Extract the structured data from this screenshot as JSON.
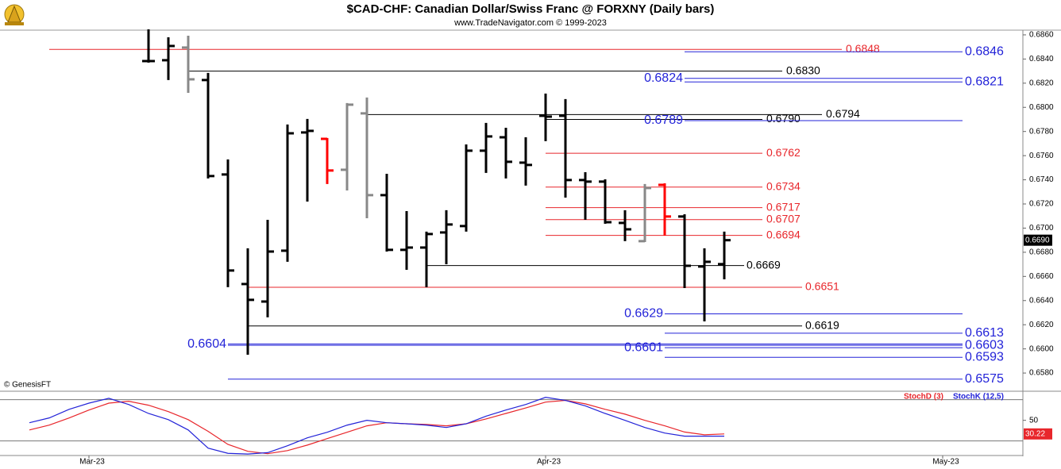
{
  "chart_data": {
    "type": "ohlc",
    "title": "$CAD-CHF:  Canadian Dollar/Swiss Franc @ FORXNY  (Daily bars)",
    "subtitle": "www.TradeNavigator.com © 1999-2023",
    "annotation": "© GenesisFT",
    "categories": [
      null,
      null,
      null,
      "Mar-23",
      null,
      null,
      null,
      null,
      null,
      null,
      null,
      null,
      null,
      null,
      null,
      null,
      null,
      null,
      null,
      null,
      null,
      null,
      null,
      null,
      null,
      null,
      "Apr-23",
      null,
      null,
      null,
      null,
      null,
      null,
      null,
      null,
      null,
      null,
      null,
      null,
      null,
      null,
      null,
      null,
      null,
      null,
      null,
      "May-23"
    ],
    "open": [
      null,
      null,
      null,
      null,
      null,
      null,
      0.68383,
      0.6839,
      0.68495,
      0.68226,
      0.67444,
      0.66537,
      0.66392,
      0.66813,
      0.67792,
      0.67739,
      0.67483,
      0.6795,
      0.67273,
      0.6682,
      0.66839,
      0.66964,
      0.67017,
      0.67641,
      0.67752,
      0.67542,
      0.6793,
      0.6793,
      0.67398,
      0.67385,
      0.67043,
      0.66892,
      0.67358,
      0.67096,
      0.66682,
      0.66702,
      null,
      null,
      null,
      null,
      null,
      null,
      null,
      null,
      null,
      null,
      null
    ],
    "high": [
      null,
      null,
      null,
      null,
      null,
      null,
      0.68646,
      0.6858,
      0.68593,
      0.68285,
      0.67569,
      0.66833,
      0.67069,
      0.67858,
      0.67904,
      0.67746,
      0.68035,
      0.68081,
      0.6745,
      0.67141,
      0.66971,
      0.67148,
      0.67693,
      0.67871,
      0.67831,
      0.67752,
      0.68114,
      0.68068,
      0.67463,
      0.67404,
      0.67148,
      0.67365,
      0.67371,
      0.67115,
      0.66833,
      0.66971,
      null,
      null,
      null,
      null,
      null,
      null,
      null,
      null,
      null,
      null,
      null
    ],
    "low": [
      null,
      null,
      null,
      null,
      null,
      null,
      0.6837,
      0.68226,
      0.6812,
      0.67411,
      0.66511,
      0.65952,
      0.66261,
      0.66721,
      0.6722,
      0.67365,
      0.67312,
      0.67082,
      0.66806,
      0.66655,
      0.66511,
      0.66701,
      0.66971,
      0.67457,
      0.67411,
      0.67352,
      0.6772,
      0.67253,
      0.67069,
      0.67036,
      0.66892,
      0.66885,
      0.66938,
      0.66504,
      0.66228,
      0.66576,
      null,
      null,
      null,
      null,
      null,
      null,
      null,
      null,
      null,
      null,
      null
    ],
    "close": [
      null,
      null,
      null,
      null,
      null,
      null,
      0.68383,
      0.68508,
      0.68232,
      0.67431,
      0.66649,
      0.66406,
      0.66806,
      0.67785,
      0.67805,
      0.67477,
      0.68022,
      0.67273,
      0.6682,
      0.66839,
      0.66951,
      0.6703,
      0.67641,
      0.67759,
      0.67549,
      0.67523,
      0.67923,
      0.67398,
      0.67385,
      0.67049,
      0.6699,
      0.67332,
      0.67096,
      0.66688,
      0.66721,
      0.669,
      null,
      null,
      null,
      null,
      null,
      null,
      null,
      null,
      null,
      null,
      null
    ],
    "bar_colors": [
      null,
      null,
      null,
      null,
      null,
      null,
      "#000000",
      "#000000",
      "#888888",
      "#000000",
      "#000000",
      "#000000",
      "#000000",
      "#000000",
      "#000000",
      "#ff0000",
      "#888888",
      "#888888",
      "#000000",
      "#000000",
      "#000000",
      "#000000",
      "#000000",
      "#000000",
      "#000000",
      "#000000",
      "#000000",
      "#000000",
      "#000000",
      "#000000",
      "#000000",
      "#888888",
      "#ff0000",
      "#000000",
      "#000000",
      "#000000",
      null,
      null,
      null,
      null,
      null,
      null,
      null,
      null,
      null,
      null,
      null
    ],
    "ylim": [
      0.65656,
      0.68639
    ],
    "yticks": [
      {
        "value": 0.658,
        "label": "0.6580"
      },
      {
        "value": 0.66,
        "label": "0.6600"
      },
      {
        "value": 0.662,
        "label": "0.6620"
      },
      {
        "value": 0.664,
        "label": "0.6640"
      },
      {
        "value": 0.666,
        "label": "0.6660"
      },
      {
        "value": 0.668,
        "label": "0.6680"
      },
      {
        "value": 0.67,
        "label": "0.6700"
      },
      {
        "value": 0.672,
        "label": "0.6720"
      },
      {
        "value": 0.674,
        "label": "0.6740"
      },
      {
        "value": 0.676,
        "label": "0.6760"
      },
      {
        "value": 0.678,
        "label": "0.6780"
      },
      {
        "value": 0.68,
        "label": "0.6800"
      },
      {
        "value": 0.682,
        "label": "0.6820"
      },
      {
        "value": 0.684,
        "label": "0.6840"
      },
      {
        "value": 0.686,
        "label": "0.6860"
      }
    ],
    "last_price": {
      "value": 0.669,
      "label": "0.6690"
    },
    "levels": [
      {
        "value": 0.6848,
        "label": "0.6848",
        "color": "#e8262b"
      },
      {
        "value": 0.6846,
        "label": "0.6846",
        "color": "#2323d8"
      },
      {
        "value": 0.683,
        "label": "0.6830",
        "color": "#000000"
      },
      {
        "value": 0.6824,
        "label": "0.6824",
        "color": "#2323d8"
      },
      {
        "value": 0.6821,
        "label": "0.6821",
        "color": "#2323d8"
      },
      {
        "value": 0.6794,
        "label": "0.6794",
        "color": "#000000"
      },
      {
        "value": 0.679,
        "label": "0.6790",
        "color": "#000000"
      },
      {
        "value": 0.6789,
        "label": "0.6789",
        "color": "#2323d8"
      },
      {
        "value": 0.6762,
        "label": "0.6762",
        "color": "#e8262b"
      },
      {
        "value": 0.6734,
        "label": "0.6734",
        "color": "#e8262b"
      },
      {
        "value": 0.6717,
        "label": "0.6717",
        "color": "#e8262b"
      },
      {
        "value": 0.6707,
        "label": "0.6707",
        "color": "#e8262b"
      },
      {
        "value": 0.6694,
        "label": "0.6694",
        "color": "#e8262b"
      },
      {
        "value": 0.6669,
        "label": "0.6669",
        "color": "#000000"
      },
      {
        "value": 0.6651,
        "label": "0.6651",
        "color": "#e8262b"
      },
      {
        "value": 0.6629,
        "label": "0.6629",
        "color": "#2323d8"
      },
      {
        "value": 0.6619,
        "label": "0.6619",
        "color": "#000000"
      },
      {
        "value": 0.6613,
        "label": "0.6613",
        "color": "#2323d8"
      },
      {
        "value": 0.6604,
        "label": "0.6604",
        "color": "#2323d8"
      },
      {
        "value": 0.6603,
        "label": "0.6603",
        "color": "#2323d8"
      },
      {
        "value": 0.6601,
        "label": "0.6601",
        "color": "#2323d8"
      },
      {
        "value": 0.6593,
        "label": "0.6593",
        "color": "#2323d8"
      },
      {
        "value": 0.6575,
        "label": "0.6575",
        "color": "#2323d8"
      }
    ],
    "indicator": {
      "type": "line",
      "ylim": [
        0,
        90
      ],
      "yticks": [
        50
      ],
      "hlines": [
        20,
        80
      ],
      "series": [
        {
          "name": "StochD (3)",
          "color": "#e8262b",
          "values": [
            36,
            43,
            53.5,
            65,
            75,
            77.7,
            72,
            62.7,
            51,
            34,
            15,
            5,
            1.5,
            6,
            14,
            23.5,
            32.7,
            42,
            46.5,
            45,
            44,
            42,
            45,
            52,
            60,
            68,
            76.5,
            79,
            74,
            66,
            59,
            50,
            42,
            33,
            29,
            30.22,
            null,
            null,
            null,
            null,
            null,
            null,
            null,
            null,
            null,
            null,
            null
          ]
        },
        {
          "name": "StochK (12,5)",
          "color": "#2323d8",
          "values": [
            46.5,
            53.5,
            66,
            75,
            82,
            73,
            60,
            51,
            36,
            9.6,
            2,
            1,
            3,
            13,
            24.6,
            32.7,
            43,
            50,
            46.5,
            45,
            43,
            39.6,
            45,
            56,
            65,
            73,
            83.5,
            79,
            71,
            60,
            50,
            39.6,
            31.5,
            27,
            27,
            27,
            null,
            null,
            null,
            null,
            null,
            null,
            null,
            null,
            null,
            null,
            null
          ]
        }
      ]
    }
  }
}
